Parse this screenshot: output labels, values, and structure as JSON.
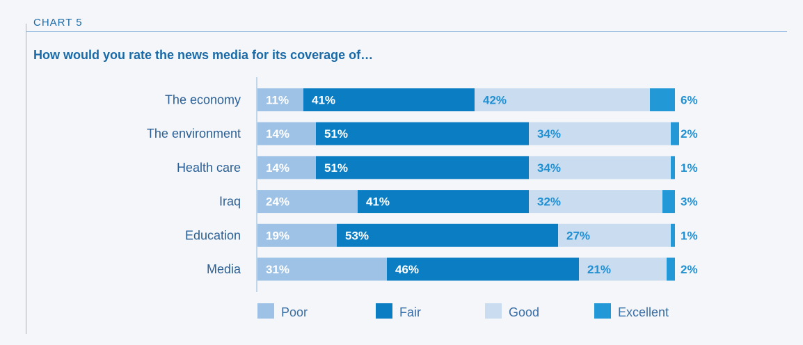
{
  "header": {
    "chart_label": "CHART 5",
    "title": "How would you rate the news media for its coverage of…"
  },
  "colors": {
    "poor": "#9dc2e6",
    "fair": "#0a7dc3",
    "good": "#c9dcf0",
    "excellent": "#2298d6",
    "label_text": "#2a5f96",
    "value_on_dark": "#ffffff",
    "value_on_light": "#2090d2"
  },
  "chart_data": {
    "type": "bar",
    "orientation": "horizontal",
    "stacked": true,
    "title": "How would you rate the news media for its coverage of…",
    "categories": [
      "The economy",
      "The environment",
      "Health care",
      "Iraq",
      "Education",
      "Media"
    ],
    "series": [
      {
        "name": "Poor",
        "values": [
          11,
          14,
          14,
          24,
          19,
          31
        ]
      },
      {
        "name": "Fair",
        "values": [
          41,
          51,
          51,
          41,
          53,
          46
        ]
      },
      {
        "name": "Good",
        "values": [
          42,
          34,
          34,
          32,
          27,
          21
        ]
      },
      {
        "name": "Excellent",
        "values": [
          6,
          2,
          1,
          3,
          1,
          2
        ]
      }
    ],
    "value_labels": [
      [
        "11%",
        "41%",
        "42%",
        "6%"
      ],
      [
        "14%",
        "51%",
        "34%",
        "2%"
      ],
      [
        "14%",
        "51%",
        "34%",
        "1%"
      ],
      [
        "24%",
        "41%",
        "32%",
        "3%"
      ],
      [
        "19%",
        "53%",
        "27%",
        "1%"
      ],
      [
        "31%",
        "46%",
        "21%",
        "2%"
      ]
    ],
    "legend": {
      "position": "bottom",
      "items": [
        {
          "name": "Poor",
          "label": "Poor"
        },
        {
          "name": "Fair",
          "label": "Fair"
        },
        {
          "name": "Good",
          "label": "Good"
        },
        {
          "name": "Excellent",
          "label": "Excellent"
        }
      ]
    },
    "grid": false
  }
}
